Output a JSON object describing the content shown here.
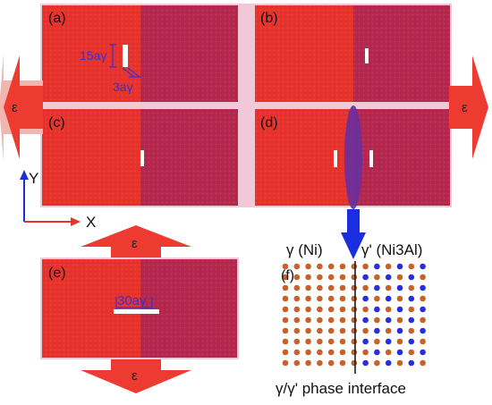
{
  "panels": {
    "a": {
      "label": "(a)"
    },
    "b": {
      "label": "(b)"
    },
    "c": {
      "label": "(c)"
    },
    "d": {
      "label": "(d)"
    },
    "e": {
      "label": "(e)"
    },
    "f": {
      "label": "(f)"
    }
  },
  "annotations": {
    "crack_height": "15aγ",
    "crack_width": "3aγ",
    "crack_length_e": "30aγ"
  },
  "strain_label": "ε",
  "axes": {
    "y": "Y",
    "x": "X"
  },
  "phases": {
    "gamma": "γ (Ni)",
    "gamma_prime": "γ' (Ni3Al)",
    "interface": "γ/γ' phase interface"
  },
  "colors": {
    "gamma_phase": "#e8322c",
    "gamma_prime_phase": "#b5284e",
    "arrow_red": "#ee3b32",
    "arrow_pink": "#f2b5b0",
    "annotation_blue": "#3b2fd0",
    "axis_blue": "#1f2ecc",
    "ellipse_purple": "#6a2f9c",
    "atom_ni": "#c8612a",
    "atom_al": "#2b2be0",
    "divider": "#f0c8d8"
  }
}
